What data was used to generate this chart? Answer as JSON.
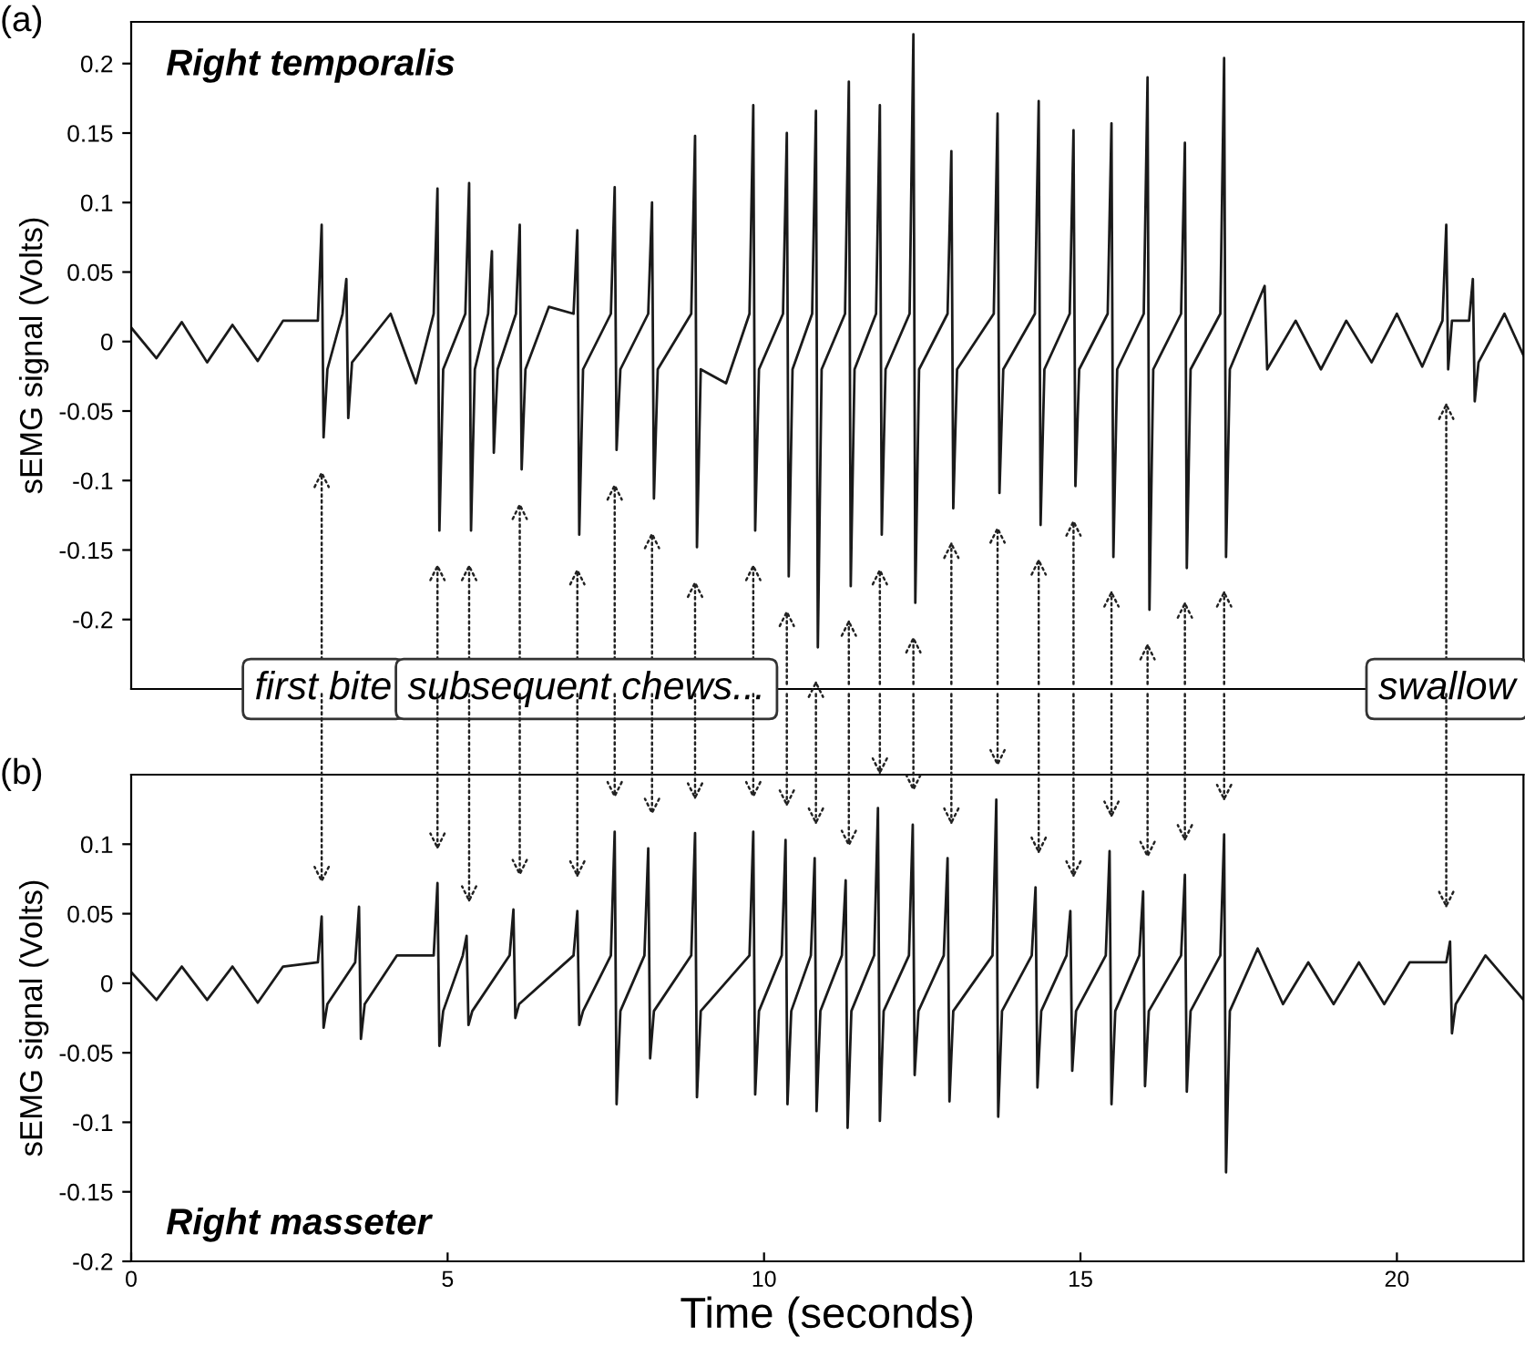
{
  "chart_data": [
    {
      "type": "line",
      "title": "Right temporalis",
      "ylabel": "sEMG signal (Volts)",
      "tick_labels": "y",
      "annotations": [
        "(a)",
        "first bite",
        "subsequent chews...",
        "swallow"
      ],
      "xlim": [
        0,
        22
      ],
      "ylim": [
        -0.25,
        0.23
      ],
      "yticks": [
        -0.2,
        -0.15,
        -0.1,
        -0.05,
        0,
        0.05,
        0.1,
        0.15,
        0.2
      ],
      "grid": false,
      "series": [
        {
          "color": "#1a1a1a",
          "x": [
            0.0,
            0.4,
            0.8,
            1.2,
            1.6,
            2.0,
            2.4,
            2.95,
            3.01,
            3.04,
            3.1,
            3.34,
            3.4,
            3.43,
            3.49,
            4.1,
            4.5,
            4.78,
            4.84,
            4.87,
            4.93,
            5.28,
            5.34,
            5.37,
            5.43,
            5.64,
            5.7,
            5.73,
            5.79,
            6.08,
            6.14,
            6.17,
            6.23,
            6.6,
            6.99,
            7.05,
            7.08,
            7.14,
            7.58,
            7.64,
            7.67,
            7.73,
            8.17,
            8.23,
            8.26,
            8.32,
            8.85,
            8.91,
            8.94,
            9.0,
            9.4,
            9.77,
            9.83,
            9.86,
            9.92,
            10.3,
            10.36,
            10.39,
            10.45,
            10.76,
            10.82,
            10.85,
            10.91,
            11.28,
            11.34,
            11.37,
            11.43,
            11.77,
            11.83,
            11.86,
            11.92,
            12.3,
            12.36,
            12.39,
            12.45,
            12.9,
            12.96,
            12.99,
            13.05,
            13.63,
            13.69,
            13.72,
            13.78,
            14.28,
            14.34,
            14.37,
            14.43,
            14.83,
            14.89,
            14.92,
            14.98,
            15.43,
            15.49,
            15.52,
            15.58,
            16.0,
            16.06,
            16.09,
            16.15,
            16.59,
            16.65,
            16.68,
            16.74,
            17.21,
            17.27,
            17.3,
            17.36,
            17.91,
            17.95,
            18.4,
            18.8,
            19.2,
            19.6,
            20.0,
            20.4,
            20.72,
            20.78,
            20.81,
            20.87,
            21.14,
            21.2,
            21.23,
            21.29,
            21.7,
            22.0
          ],
          "values": [
            0.01,
            -0.012,
            0.014,
            -0.015,
            0.012,
            -0.014,
            0.015,
            0.015,
            0.084,
            -0.069,
            -0.02,
            0.02,
            0.045,
            -0.055,
            -0.015,
            0.02,
            -0.03,
            0.02,
            0.11,
            -0.136,
            -0.02,
            0.02,
            0.114,
            -0.136,
            -0.02,
            0.02,
            0.065,
            -0.08,
            -0.02,
            0.02,
            0.084,
            -0.092,
            -0.02,
            0.025,
            0.02,
            0.08,
            -0.139,
            -0.02,
            0.02,
            0.111,
            -0.078,
            -0.02,
            0.02,
            0.1,
            -0.113,
            -0.02,
            0.02,
            0.148,
            -0.148,
            -0.02,
            -0.03,
            0.02,
            0.17,
            -0.136,
            -0.02,
            0.02,
            0.15,
            -0.169,
            -0.02,
            0.02,
            0.166,
            -0.22,
            -0.02,
            0.02,
            0.187,
            -0.176,
            -0.02,
            0.02,
            0.17,
            -0.139,
            -0.02,
            0.02,
            0.221,
            -0.188,
            -0.02,
            0.02,
            0.137,
            -0.12,
            -0.02,
            0.02,
            0.164,
            -0.109,
            -0.02,
            0.02,
            0.173,
            -0.132,
            -0.02,
            0.02,
            0.152,
            -0.104,
            -0.02,
            0.02,
            0.157,
            -0.155,
            -0.02,
            0.02,
            0.19,
            -0.193,
            -0.02,
            0.02,
            0.143,
            -0.163,
            -0.02,
            0.02,
            0.204,
            -0.155,
            -0.02,
            0.04,
            -0.02,
            0.015,
            -0.02,
            0.015,
            -0.015,
            0.02,
            -0.018,
            0.015,
            0.084,
            -0.02,
            0.015,
            0.015,
            0.045,
            -0.043,
            -0.015,
            0.02,
            -0.01
          ]
        }
      ]
    },
    {
      "type": "line",
      "title": "Right masseter",
      "ylabel": "sEMG signal (Volts)",
      "xlabel": "Time (seconds)",
      "annotations": [
        "(b)"
      ],
      "xlim": [
        0,
        22
      ],
      "xticks": [
        0,
        5,
        10,
        15,
        20
      ],
      "ylim": [
        -0.2,
        0.15
      ],
      "yticks": [
        -0.2,
        -0.15,
        -0.1,
        -0.05,
        0,
        0.05,
        0.1
      ],
      "grid": false,
      "series": [
        {
          "color": "#1a1a1a",
          "x": [
            0.0,
            0.4,
            0.8,
            1.2,
            1.6,
            2.0,
            2.4,
            2.95,
            3.01,
            3.04,
            3.1,
            3.54,
            3.6,
            3.63,
            3.69,
            4.2,
            4.78,
            4.84,
            4.87,
            4.93,
            5.24,
            5.3,
            5.33,
            5.39,
            5.98,
            6.04,
            6.07,
            6.13,
            6.99,
            7.05,
            7.08,
            7.14,
            7.58,
            7.64,
            7.67,
            7.73,
            8.11,
            8.17,
            8.2,
            8.26,
            8.85,
            8.91,
            8.94,
            9.0,
            9.77,
            9.83,
            9.86,
            9.92,
            10.28,
            10.34,
            10.37,
            10.43,
            10.74,
            10.8,
            10.83,
            10.89,
            11.23,
            11.29,
            11.32,
            11.38,
            11.74,
            11.8,
            11.83,
            11.89,
            12.29,
            12.35,
            12.38,
            12.44,
            12.84,
            12.9,
            12.93,
            12.99,
            13.61,
            13.67,
            13.7,
            13.76,
            14.23,
            14.29,
            14.32,
            14.38,
            14.78,
            14.84,
            14.87,
            14.93,
            15.4,
            15.46,
            15.49,
            15.55,
            15.93,
            15.99,
            16.02,
            16.08,
            16.59,
            16.65,
            16.68,
            16.74,
            17.21,
            17.27,
            17.3,
            17.36,
            17.8,
            18.2,
            18.6,
            19.0,
            19.4,
            19.8,
            20.2,
            20.78,
            20.84,
            20.87,
            20.93,
            21.4,
            22.0
          ],
          "values": [
            0.008,
            -0.012,
            0.012,
            -0.012,
            0.012,
            -0.014,
            0.012,
            0.015,
            0.048,
            -0.032,
            -0.015,
            0.015,
            0.055,
            -0.04,
            -0.015,
            0.02,
            0.02,
            0.072,
            -0.045,
            -0.02,
            0.02,
            0.034,
            -0.03,
            -0.02,
            0.02,
            0.053,
            -0.025,
            -0.015,
            0.02,
            0.052,
            -0.03,
            -0.02,
            0.02,
            0.109,
            -0.087,
            -0.02,
            0.02,
            0.097,
            -0.054,
            -0.02,
            0.02,
            0.108,
            -0.082,
            -0.02,
            0.02,
            0.109,
            -0.08,
            -0.02,
            0.02,
            0.103,
            -0.087,
            -0.02,
            0.02,
            0.09,
            -0.092,
            -0.02,
            0.02,
            0.074,
            -0.104,
            -0.02,
            0.02,
            0.126,
            -0.099,
            -0.02,
            0.02,
            0.114,
            -0.066,
            -0.02,
            0.02,
            0.09,
            -0.085,
            -0.02,
            0.02,
            0.132,
            -0.096,
            -0.02,
            0.02,
            0.069,
            -0.075,
            -0.02,
            0.02,
            0.052,
            -0.063,
            -0.02,
            0.02,
            0.095,
            -0.087,
            -0.02,
            0.02,
            0.066,
            -0.074,
            -0.02,
            0.02,
            0.078,
            -0.078,
            -0.02,
            0.02,
            0.107,
            -0.136,
            -0.02,
            0.025,
            -0.015,
            0.015,
            -0.015,
            0.015,
            -0.015,
            0.015,
            0.015,
            0.03,
            -0.036,
            -0.015,
            0.02,
            -0.012
          ]
        }
      ]
    }
  ]
}
